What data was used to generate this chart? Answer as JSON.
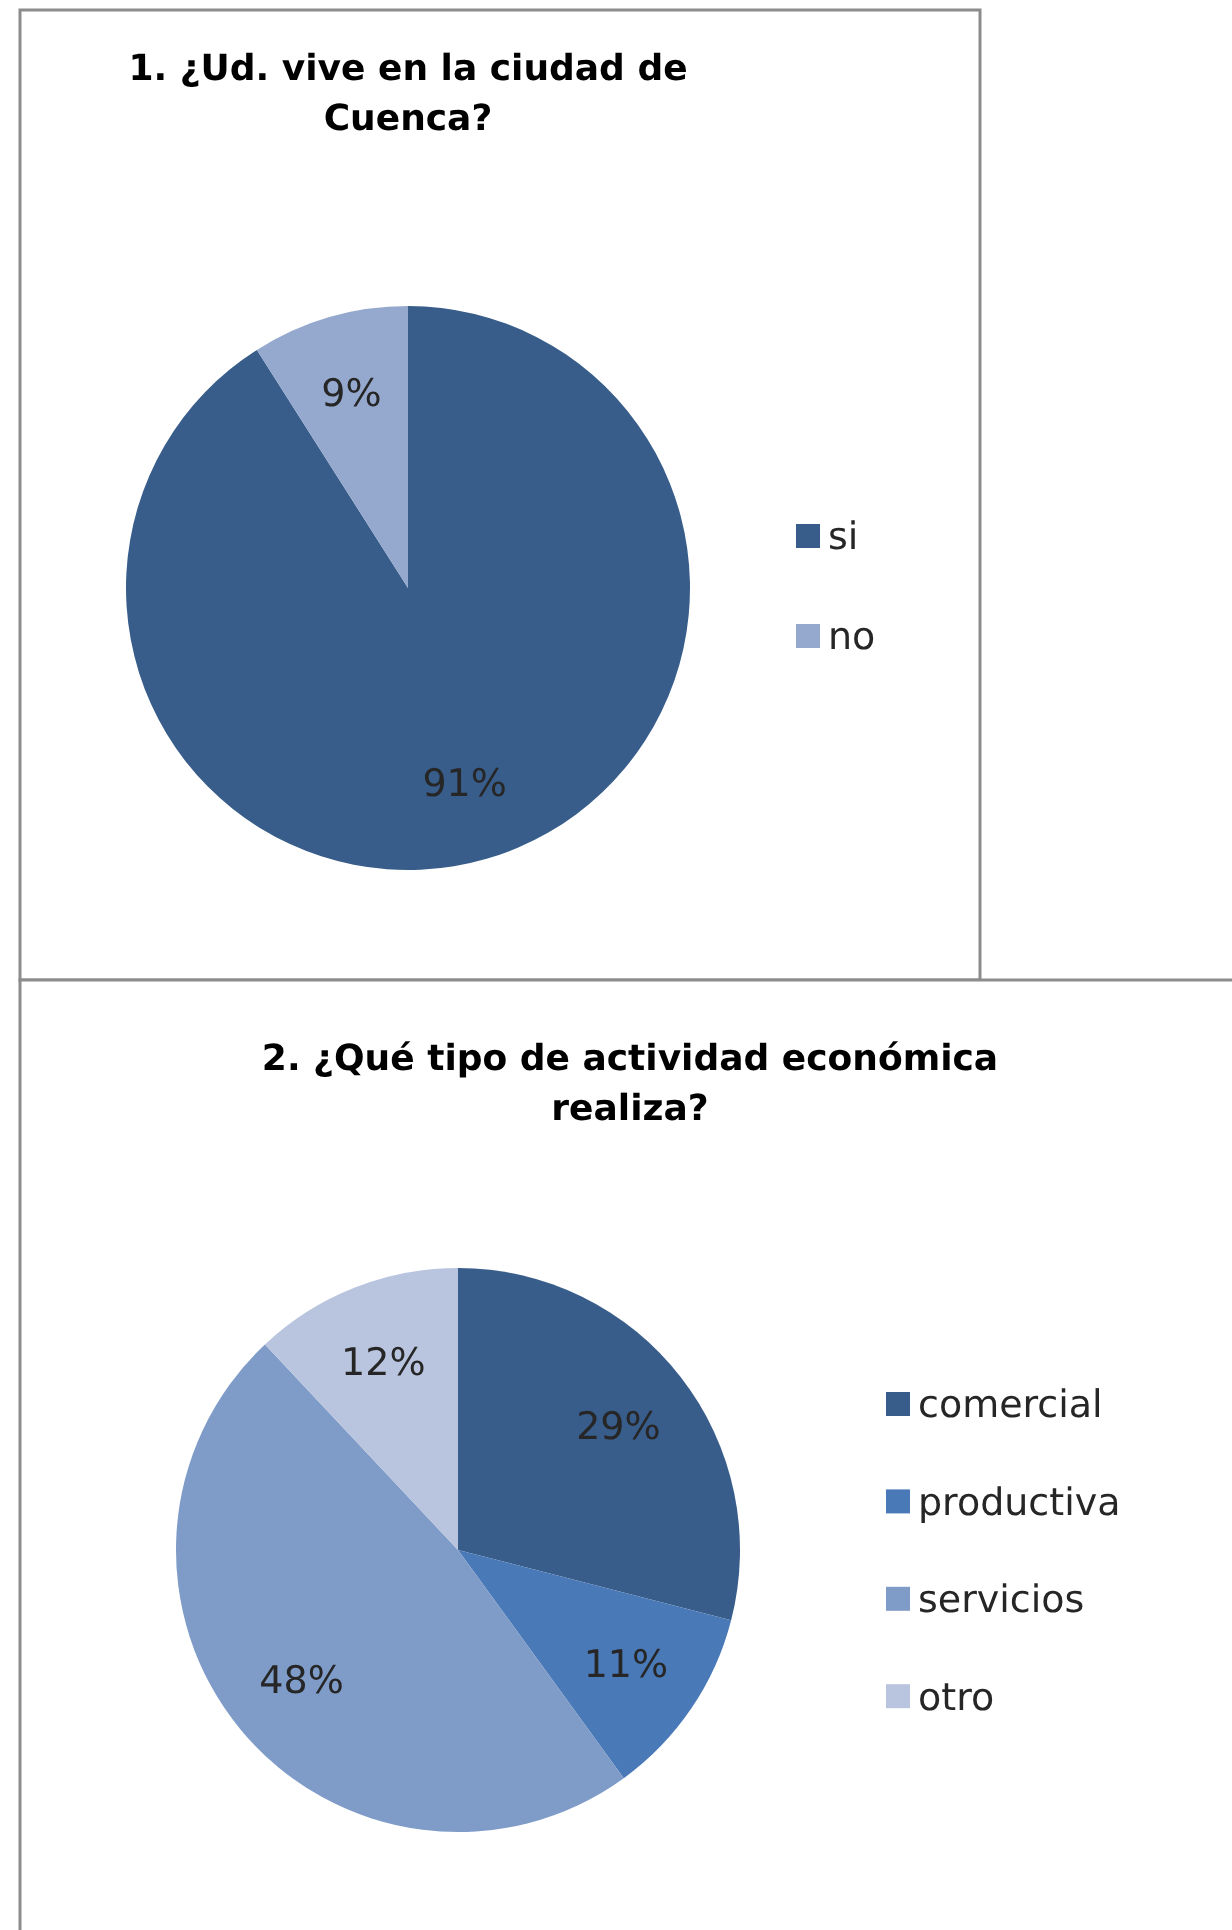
{
  "chart_data": [
    {
      "type": "pie",
      "title": "1. ¿Ud. vive en la ciudad de Cuenca?",
      "categories": [
        "si",
        "no"
      ],
      "values": [
        91,
        9
      ],
      "colors": [
        "#385d8a",
        "#95a9cf"
      ],
      "value_labels": [
        "91%",
        "9%"
      ],
      "legend": "right"
    },
    {
      "type": "pie",
      "title": "2. ¿Qué tipo de actividad económica realiza?",
      "categories": [
        "comercial",
        "productiva",
        "servicios",
        "otro"
      ],
      "values": [
        29,
        11,
        48,
        12
      ],
      "colors": [
        "#385d8a",
        "#4a79b7",
        "#7f9bc8",
        "#b9c5de"
      ],
      "value_labels": [
        "29%",
        "11%",
        "48%",
        "12%"
      ],
      "legend": "right"
    }
  ]
}
